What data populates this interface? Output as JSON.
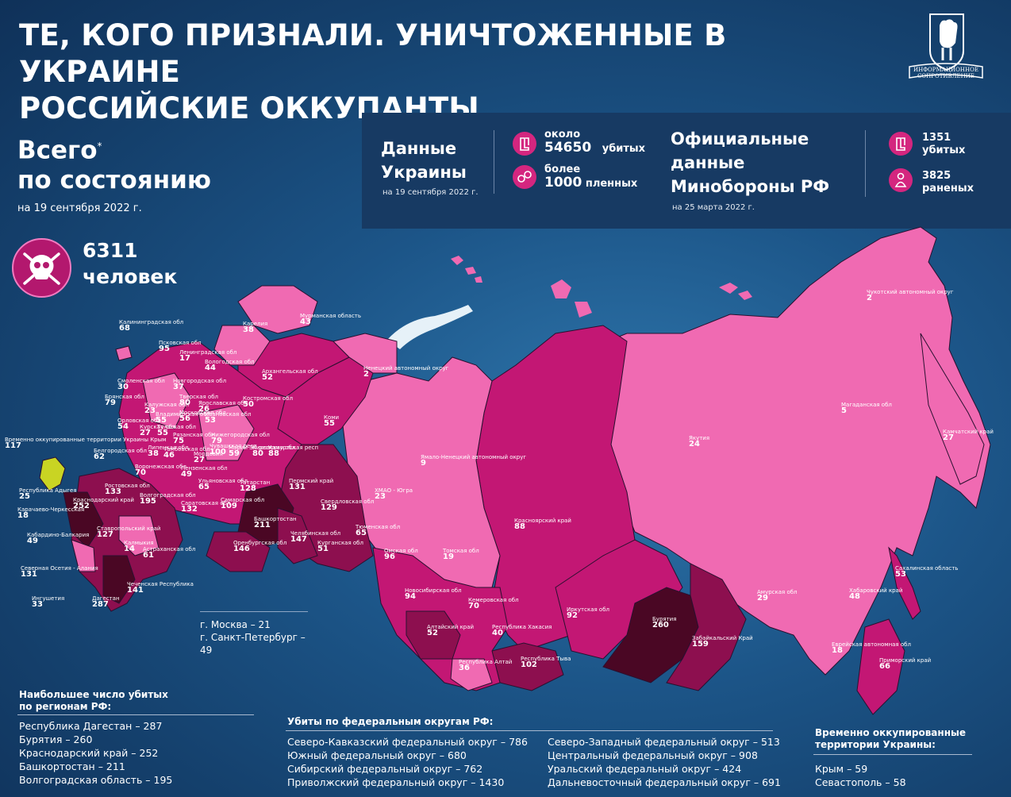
{
  "title": {
    "line1": "ТЕ, КОГО ПРИЗНАЛИ. УНИЧТОЖЕННЫЕ В УКРАИНЕ",
    "line2": "РОССИЙСКИЕ ОККУПАНТЫ"
  },
  "logo": {
    "text1": "ИНФОРМАЦИОННОЕ",
    "text2": "СОПРОТИВЛЕНИЕ"
  },
  "total": {
    "line1": "Всего",
    "asterisk": "*",
    "line2": "по состоянию",
    "date": "на 19 сентября 2022 г.",
    "count": "6311",
    "unit": "человек"
  },
  "ukraine_data": {
    "title_line1": "Данные",
    "title_line2": "Украины",
    "date": "на 19 сентября 2022 г.",
    "killed_prefix": "около",
    "killed_value": "54650",
    "killed_label": "убитых",
    "captured_prefix": "более",
    "captured_value": "1000",
    "captured_label": "пленных"
  },
  "rf_data": {
    "title_line1": "Официальные",
    "title_line2": "данные",
    "title_line3": "Минобороны РФ",
    "date": "на 25 марта 2022 г.",
    "killed_value": "1351",
    "killed_label": "убитых",
    "wounded_value": "3825",
    "wounded_label": "раненых"
  },
  "colors": {
    "light": "#f06ab2",
    "medium": "#c31774",
    "dark": "#8d0f4f",
    "darkest": "#4a0724",
    "crimea": "#c9d423",
    "panel": "#173a63"
  },
  "regions": [
    {
      "name": "Калининградская обл",
      "value": "68"
    },
    {
      "name": "Мурманская область",
      "value": "43"
    },
    {
      "name": "Карелия",
      "value": "38"
    },
    {
      "name": "Псковская обл",
      "value": "95"
    },
    {
      "name": "Ленинградская обл",
      "value": "17"
    },
    {
      "name": "Новгородская обл",
      "value": "37"
    },
    {
      "name": "Вологодская обл",
      "value": "44"
    },
    {
      "name": "Архангельская обл",
      "value": "52"
    },
    {
      "name": "Ненецкий автономный округ",
      "value": "2"
    },
    {
      "name": "Смоленская обл",
      "value": "30"
    },
    {
      "name": "Тверская обл",
      "value": "80"
    },
    {
      "name": "Ярославская обл",
      "value": "26"
    },
    {
      "name": "Костромская обл",
      "value": "50"
    },
    {
      "name": "Брянская обл",
      "value": "79"
    },
    {
      "name": "Калужская обл",
      "value": "23"
    },
    {
      "name": "Московская обл",
      "value": "56"
    },
    {
      "name": "Ивановская обл",
      "value": "53"
    },
    {
      "name": "Владимирская обл",
      "value": "55"
    },
    {
      "name": "Коми",
      "value": "55"
    },
    {
      "name": "Орловская обл",
      "value": "54"
    },
    {
      "name": "Курская обл",
      "value": "27"
    },
    {
      "name": "Тульская обл",
      "value": "55"
    },
    {
      "name": "Рязанская обл",
      "value": "75"
    },
    {
      "name": "Нижегородская обл",
      "value": "79"
    },
    {
      "name": "Белгородская обл",
      "value": "62"
    },
    {
      "name": "Липецкая обл",
      "value": "38"
    },
    {
      "name": "Тамбовская обл",
      "value": "46"
    },
    {
      "name": "Мордовия",
      "value": "27"
    },
    {
      "name": "Чувашская респ",
      "value": "100"
    },
    {
      "name": "Марий Эл респ",
      "value": "59"
    },
    {
      "name": "Кировская обл",
      "value": "80"
    },
    {
      "name": "Удмуртская респ",
      "value": "88"
    },
    {
      "name": "Воронежская обл",
      "value": "70"
    },
    {
      "name": "Пензенская обл",
      "value": "49"
    },
    {
      "name": "Ульяновская обл",
      "value": "65"
    },
    {
      "name": "Татарстан",
      "value": "128"
    },
    {
      "name": "Пермский край",
      "value": "131"
    },
    {
      "name": "Ростовская обл",
      "value": "133"
    },
    {
      "name": "Волгоградская обл",
      "value": "195"
    },
    {
      "name": "Саратовская обл",
      "value": "132"
    },
    {
      "name": "Самарская обл",
      "value": "109"
    },
    {
      "name": "Свердловская обл",
      "value": "129"
    },
    {
      "name": "Ямало-Ненецкий автономный округ",
      "value": "9"
    },
    {
      "name": "ХМАО - Югра",
      "value": "23"
    },
    {
      "name": "Краснодарский край",
      "value": "252"
    },
    {
      "name": "Республика Адыгея",
      "value": "25"
    },
    {
      "name": "Карачаево-Черкесская",
      "value": "18"
    },
    {
      "name": "Ставропольский край",
      "value": "127"
    },
    {
      "name": "Калмыкия",
      "value": "14"
    },
    {
      "name": "Астраханская обл",
      "value": "61"
    },
    {
      "name": "Башкортостан",
      "value": "211"
    },
    {
      "name": "Оренбургская обл",
      "value": "146"
    },
    {
      "name": "Челябинская обл",
      "value": "147"
    },
    {
      "name": "Курганская обл",
      "value": "51"
    },
    {
      "name": "Тюменская обл",
      "value": "65"
    },
    {
      "name": "Кабардино-Балкария",
      "value": "49"
    },
    {
      "name": "Северная Осетия - Алания",
      "value": "131"
    },
    {
      "name": "Ингушетия",
      "value": "33"
    },
    {
      "name": "Дагестан",
      "value": "287"
    },
    {
      "name": "Чеченская Республика",
      "value": "141"
    },
    {
      "name": "Омская обл",
      "value": "96"
    },
    {
      "name": "Томская обл",
      "value": "19"
    },
    {
      "name": "Новосибирская обл",
      "value": "94"
    },
    {
      "name": "Алтайский край",
      "value": "52"
    },
    {
      "name": "Кемеровская обл",
      "value": "70"
    },
    {
      "name": "Республика Хакасия",
      "value": "40"
    },
    {
      "name": "Республика Алтай",
      "value": "36"
    },
    {
      "name": "Республика Тыва",
      "value": "102"
    },
    {
      "name": "Красноярский край",
      "value": "88"
    },
    {
      "name": "Иркутская обл",
      "value": "92"
    },
    {
      "name": "Бурятия",
      "value": "260"
    },
    {
      "name": "Забайкальский Край",
      "value": "159"
    },
    {
      "name": "Якутия",
      "value": "24"
    },
    {
      "name": "Амурская обл",
      "value": "29"
    },
    {
      "name": "Хабаровский край",
      "value": "48"
    },
    {
      "name": "Еврейская автономная обл",
      "value": "18"
    },
    {
      "name": "Приморский край",
      "value": "66"
    },
    {
      "name": "Сахалинская область",
      "value": "53"
    },
    {
      "name": "Магаданская обл",
      "value": "5"
    },
    {
      "name": "Камчатский край",
      "value": "27"
    },
    {
      "name": "Чукотский автономный округ",
      "value": "2"
    },
    {
      "name": "Временно оккупированные территории Украины Крым",
      "value": "117"
    }
  ],
  "cities": {
    "moscow": "г. Москва – 21",
    "spb": "г. Санкт-Петербург – 49"
  },
  "top_regions": {
    "heading_line1": "Наибольшее число убитых",
    "heading_line2": "по регионам РФ:",
    "items": [
      "Республика Дагестан – 287",
      "Бурятия – 260",
      "Краснодарский край – 252",
      "Башкортостан – 211",
      "Волгоградская область – 195"
    ]
  },
  "federal_districts": {
    "heading": "Убиты по федеральным округам РФ:",
    "col1": [
      "Северо-Кавказский федеральный округ – 786",
      "Южный федеральный округ – 680",
      "Сибирский федеральный округ – 762",
      "Приволжский федеральный округ – 1430"
    ],
    "col2": [
      "Северо-Западный федеральный округ – 513",
      "Центральный федеральный округ – 908",
      "Уральский федеральный округ – 424",
      "Дальневосточный федеральный округ – 691"
    ]
  },
  "occupied": {
    "heading_line1": "Временно оккупированные",
    "heading_line2": "территории Украины:",
    "items": [
      "Крым – 59",
      "Севастополь – 58"
    ]
  }
}
